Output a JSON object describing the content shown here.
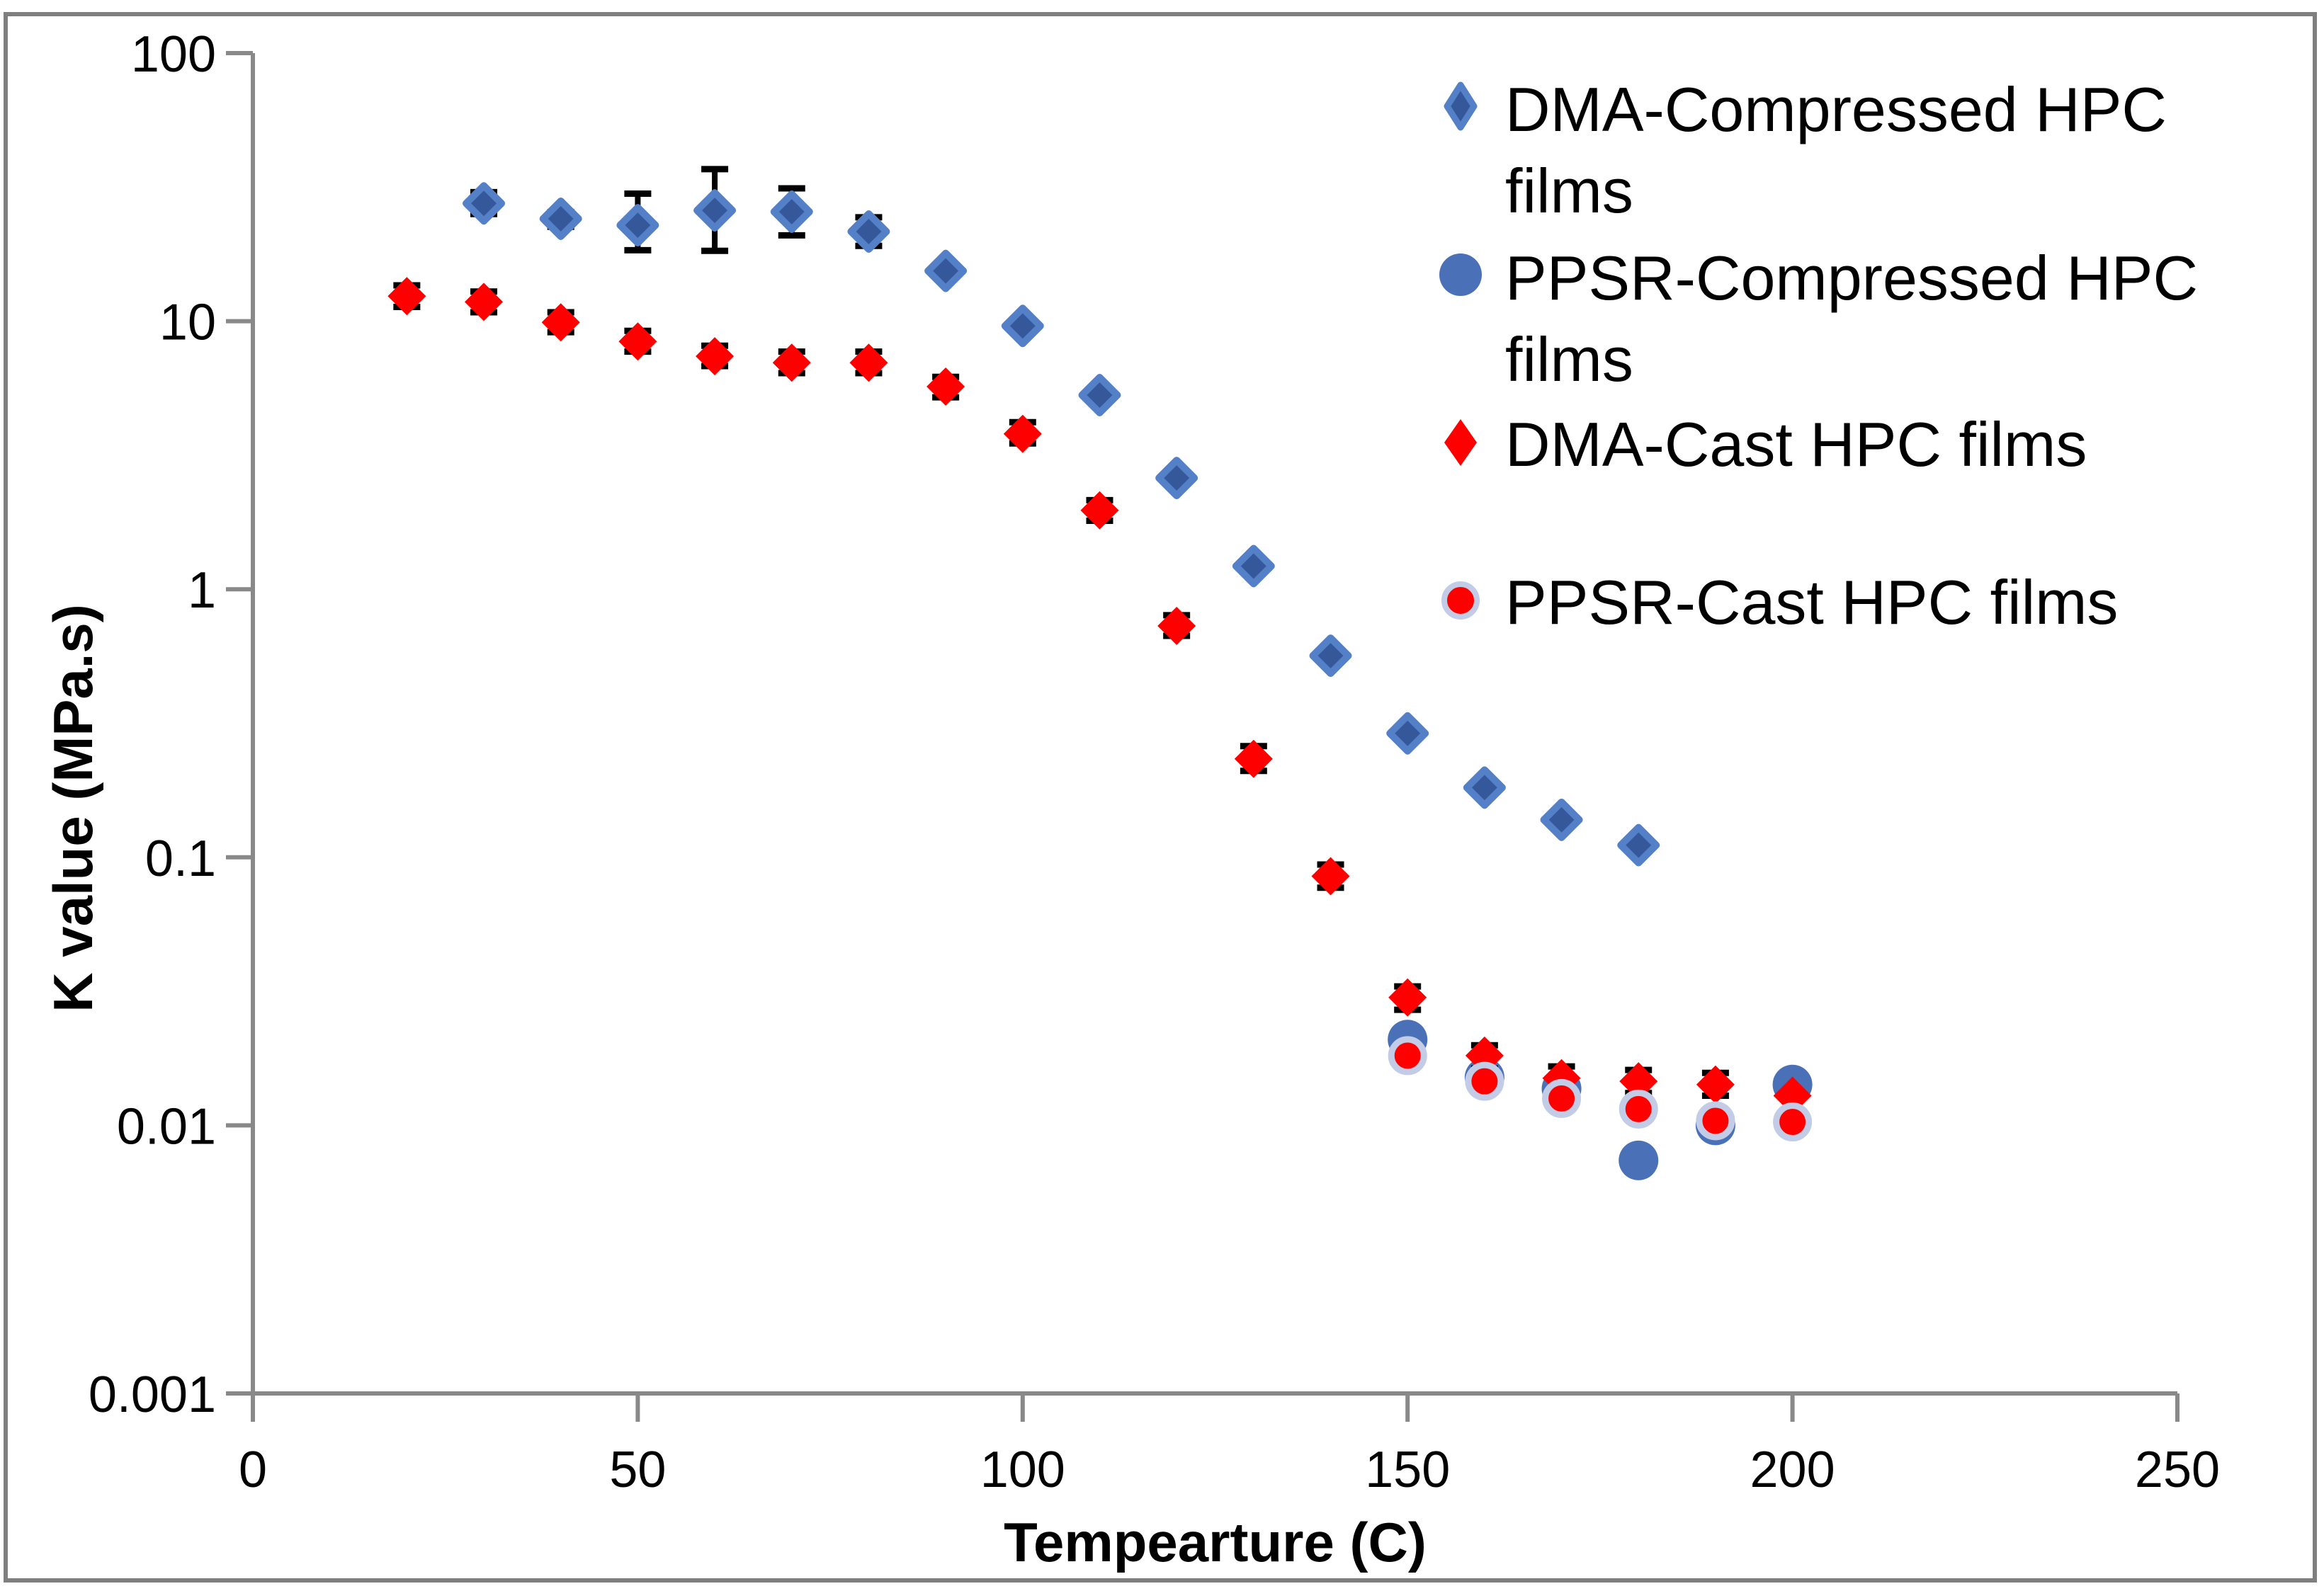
{
  "figure": {
    "background": "#ffffff",
    "border_color": "#7f7f7f"
  },
  "chart_data": {
    "type": "scatter",
    "title": "",
    "xlabel": "Tempearture (C)",
    "ylabel": "K value (MPa.s)",
    "x_axis": {
      "min": 0,
      "max": 250,
      "ticks": [
        0,
        50,
        100,
        150,
        200,
        250
      ]
    },
    "y_axis": {
      "scale": "log",
      "min": 0.001,
      "max": 100,
      "ticks": [
        "100",
        "10",
        "1",
        "0.1",
        "0.01",
        "0.001"
      ]
    },
    "grid": false,
    "legend_position": "top-right-inside",
    "axis_color": "#898989",
    "error_bar_color": "#000000",
    "series": [
      {
        "name": "DMA-Compressed HPC films",
        "marker": "diamond",
        "fill": "#35589B",
        "stroke": "#5480C8",
        "x": [
          30,
          40,
          50,
          60,
          70,
          80,
          90,
          100,
          110,
          120,
          130,
          140,
          150,
          160,
          170,
          180
        ],
        "y": [
          27.5,
          24.1,
          22.8,
          25.9,
          25.6,
          21.6,
          15.4,
          9.6,
          5.3,
          2.6,
          1.22,
          0.565,
          0.29,
          0.182,
          0.138,
          0.111
        ],
        "err_lo": [
          25.1,
          22.5,
          18.4,
          18.3,
          20.9,
          19.1,
          null,
          null,
          null,
          null,
          null,
          null,
          null,
          null,
          null,
          null
        ],
        "err_hi": [
          30.3,
          25.5,
          29.9,
          36.9,
          31.3,
          24.4,
          null,
          null,
          null,
          null,
          null,
          null,
          null,
          null,
          null,
          null
        ]
      },
      {
        "name": "PPSR-Compressed HPC films",
        "marker": "circle",
        "fill": "#4A70B8",
        "stroke": "none",
        "x": [
          150,
          160,
          170,
          180,
          190,
          200
        ],
        "y": [
          0.0209,
          0.0151,
          0.0137,
          0.0074,
          0.01,
          0.0142
        ],
        "err_lo": [
          null,
          null,
          null,
          null,
          null,
          null
        ],
        "err_hi": [
          null,
          null,
          null,
          null,
          null,
          null
        ]
      },
      {
        "name": "DMA-Cast HPC films",
        "marker": "diamond",
        "fill": "#FE0000",
        "stroke": "none",
        "x": [
          20,
          30,
          40,
          50,
          60,
          70,
          80,
          90,
          100,
          110,
          120,
          130,
          140,
          150,
          160,
          170,
          180,
          190,
          200
        ],
        "y": [
          12.4,
          11.8,
          9.9,
          8.4,
          7.4,
          7.0,
          7.0,
          5.7,
          3.8,
          1.97,
          0.73,
          0.233,
          0.085,
          0.03,
          0.0182,
          0.015,
          0.0146,
          0.0142,
          0.0129
        ],
        "err_lo": [
          11.3,
          10.8,
          9.1,
          7.7,
          6.8,
          6.4,
          6.4,
          5.2,
          3.5,
          1.8,
          0.67,
          0.21,
          0.077,
          0.027,
          0.0163,
          0.0136,
          0.0132,
          0.0129,
          null
        ],
        "err_hi": [
          13.6,
          12.9,
          10.8,
          9.2,
          8.1,
          7.7,
          7.7,
          6.2,
          4.2,
          2.15,
          0.8,
          0.26,
          0.094,
          0.033,
          0.0199,
          0.0166,
          0.0161,
          0.0157,
          null
        ]
      },
      {
        "name": "PPSR-Cast HPC films",
        "marker": "circle",
        "fill": "#FE0000",
        "stroke": "#C3CCE6",
        "x": [
          150,
          160,
          170,
          180,
          190,
          200
        ],
        "y": [
          0.0182,
          0.0146,
          0.0126,
          0.0115,
          0.0104,
          0.0103
        ],
        "err_lo": [
          null,
          null,
          null,
          null,
          null,
          null
        ],
        "err_hi": [
          null,
          null,
          null,
          null,
          null,
          null
        ]
      }
    ],
    "legend_items": [
      {
        "series": 0,
        "lines": [
          "DMA-Compressed HPC",
          "films"
        ]
      },
      {
        "series": 1,
        "lines": [
          "PPSR-Compressed HPC",
          "films"
        ]
      },
      {
        "series": 2,
        "lines": [
          "DMA-Cast HPC films"
        ]
      },
      {
        "series": 3,
        "lines": [
          "PPSR-Cast HPC films"
        ]
      }
    ]
  }
}
